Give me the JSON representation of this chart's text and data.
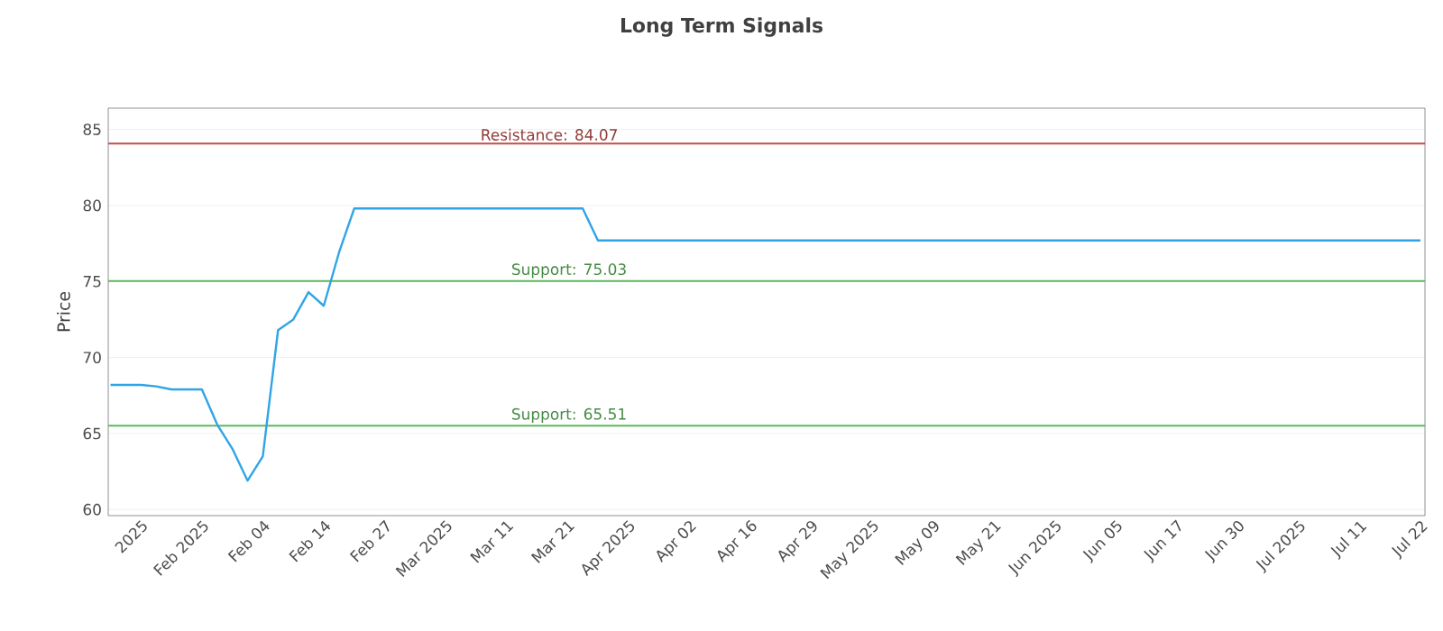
{
  "chart_data": {
    "type": "line",
    "title": "Long Term Signals",
    "ylabel": "Price",
    "categories": [
      null,
      null,
      "2025",
      null,
      null,
      null,
      "Feb 2025",
      null,
      null,
      null,
      "Feb 04",
      null,
      null,
      null,
      "Feb 14",
      null,
      null,
      null,
      "Feb 27",
      null,
      null,
      null,
      "Mar 2025",
      null,
      null,
      null,
      "Mar 11",
      null,
      null,
      null,
      "Mar 21",
      null,
      null,
      null,
      "Apr 2025",
      null,
      null,
      null,
      "Apr 02",
      null,
      null,
      null,
      "Apr 16",
      null,
      null,
      null,
      "Apr 29",
      null,
      null,
      null,
      "May 2025",
      null,
      null,
      null,
      "May 09",
      null,
      null,
      null,
      "May 21",
      null,
      null,
      null,
      "Jun 2025",
      null,
      null,
      null,
      "Jun 05",
      null,
      null,
      null,
      "Jun 17",
      null,
      null,
      null,
      "Jun 30",
      null,
      null,
      null,
      "Jul 2025",
      null,
      null,
      null,
      "Jul 11",
      null,
      null,
      null,
      "Jul 22"
    ],
    "series": [
      {
        "color": "#2fa4e7",
        "values": [
          68.2,
          68.2,
          68.2,
          68.1,
          67.9,
          67.9,
          67.9,
          65.6,
          64.0,
          61.9,
          63.5,
          71.8,
          72.5,
          74.3,
          73.4,
          76.9,
          79.8,
          79.8,
          79.8,
          79.8,
          79.8,
          79.8,
          79.8,
          79.8,
          79.8,
          79.8,
          79.8,
          79.8,
          79.8,
          79.8,
          79.8,
          79.8,
          77.7,
          77.7,
          77.7,
          77.7,
          77.7,
          77.7,
          77.7,
          77.7,
          77.7,
          77.7,
          77.7,
          77.7,
          77.7,
          77.7,
          77.7,
          77.7,
          77.7,
          77.7,
          77.7,
          77.7,
          77.7,
          77.7,
          77.7,
          77.7,
          77.7,
          77.7,
          77.7,
          77.7,
          77.7,
          77.7,
          77.7,
          77.7,
          77.7,
          77.7,
          77.7,
          77.7,
          77.7,
          77.7,
          77.7,
          77.7,
          77.7,
          77.7,
          77.7,
          77.7,
          77.7,
          77.7,
          77.7,
          77.7,
          77.7,
          77.7,
          77.7,
          77.7,
          77.7,
          77.7,
          77.7
        ]
      }
    ],
    "ylim": [
      59.6,
      86.4
    ],
    "yticks": [
      60,
      65,
      70,
      75,
      80,
      85
    ],
    "ref_lines": [
      {
        "axis": "y",
        "value": 84.07,
        "label": "Resistance: 84.07",
        "color": "#c0504d"
      },
      {
        "axis": "y",
        "value": 75.03,
        "label": "Support: 75.03",
        "color": "#5cb85c"
      },
      {
        "axis": "y",
        "value": 65.51,
        "label": "Support: 65.51",
        "color": "#5cb85c"
      }
    ],
    "grid": "y",
    "marker": "none",
    "line_style": "solid",
    "legend": false
  }
}
